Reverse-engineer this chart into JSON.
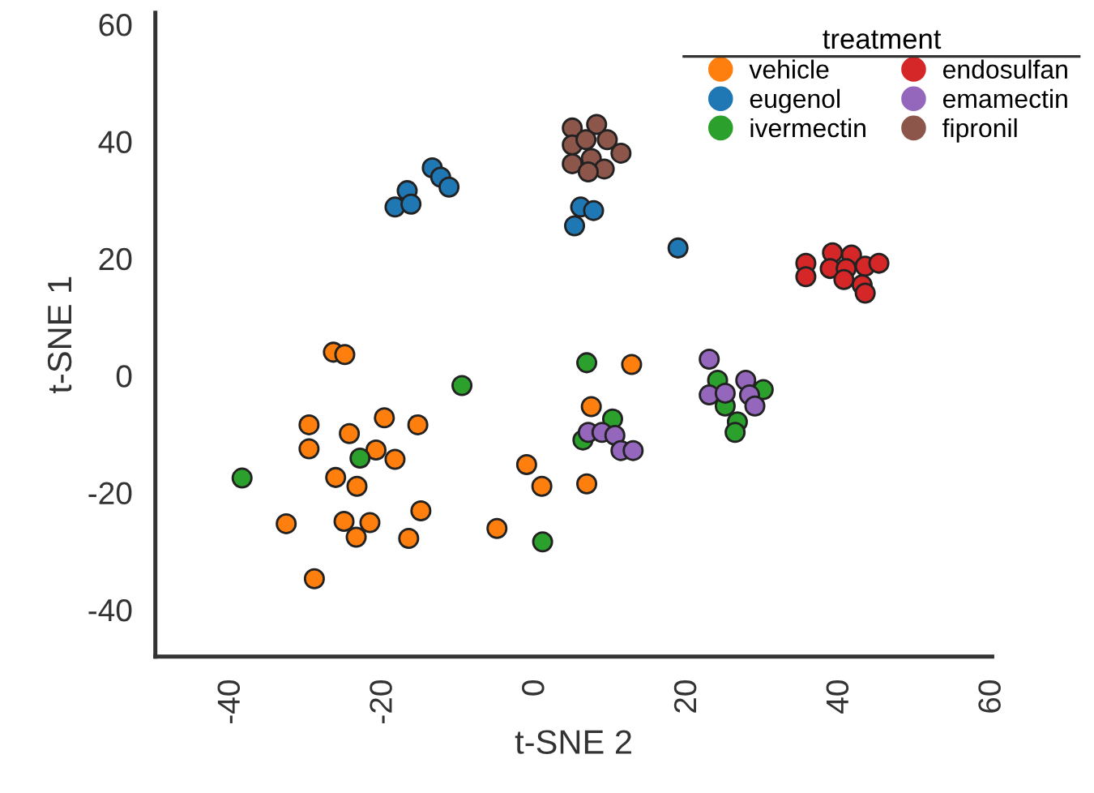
{
  "chart_data": {
    "type": "scatter",
    "xlabel": "t-SNE 2",
    "ylabel": "t-SNE 1",
    "legend_title": "treatment",
    "legend": "top right",
    "marker": "circle",
    "grid": false,
    "xlim": [
      -50,
      60
    ],
    "xticks": [
      -40,
      -20,
      0,
      20,
      40,
      60
    ],
    "ylim": [
      -48,
      62
    ],
    "yticks": [
      -40,
      -20,
      0,
      20,
      40,
      60
    ],
    "series": [
      {
        "name": "vehicle",
        "color": "#ff7f0e",
        "x": [
          -26.6,
          -25.1,
          -29.8,
          -24.5,
          -19.9,
          -15.5,
          -29.8,
          -21.0,
          -18.5,
          -26.3,
          -23.5,
          -32.8,
          -25.2,
          -21.8,
          -23.6,
          -15.1,
          -16.7,
          -29.1,
          -1.2,
          0.8,
          -5.1,
          6.7,
          7.3,
          12.6
        ],
        "values": [
          4.0,
          3.6,
          -8.4,
          -9.9,
          -7.2,
          -8.4,
          -12.5,
          -12.7,
          -14.3,
          -17.4,
          -18.9,
          -25.3,
          -24.9,
          -25.1,
          -27.6,
          -23.1,
          -27.8,
          -34.7,
          -15.2,
          -18.9,
          -26.1,
          -18.5,
          -5.3,
          1.9
        ]
      },
      {
        "name": "eugenol",
        "color": "#1f77b4",
        "x": [
          -18.5,
          -16.9,
          -16.4,
          -13.6,
          -12.5,
          -11.4,
          5.1,
          5.9,
          7.6,
          18.7
        ],
        "values": [
          28.8,
          31.6,
          29.3,
          35.5,
          33.9,
          32.2,
          25.6,
          28.8,
          28.2,
          21.8
        ]
      },
      {
        "name": "ivermectin",
        "color": "#2ca02c",
        "x": [
          -38.6,
          -23.1,
          -9.7,
          0.9,
          6.7,
          10.1,
          6.2,
          23.9,
          29.9,
          24.9,
          26.5,
          26.2
        ],
        "values": [
          -17.5,
          -14.1,
          -1.7,
          -28.4,
          2.2,
          -7.4,
          -11.0,
          -0.8,
          -2.4,
          -5.2,
          -7.9,
          -9.7
        ]
      },
      {
        "name": "endosulfan",
        "color": "#d62728",
        "x": [
          35.5,
          35.5,
          39.0,
          41.5,
          38.7,
          40.8,
          43.3,
          45.1,
          40.5,
          42.9,
          43.3
        ],
        "values": [
          19.2,
          16.9,
          21.0,
          20.6,
          18.3,
          18.3,
          18.7,
          19.2,
          16.4,
          15.5,
          14.1
        ]
      },
      {
        "name": "emamectin",
        "color": "#9467bd",
        "x": [
          6.9,
          8.7,
          10.4,
          11.2,
          12.8,
          22.8,
          22.8,
          24.9,
          27.6,
          28.1,
          28.8
        ],
        "values": [
          -9.7,
          -9.7,
          -10.2,
          -12.8,
          -12.8,
          2.8,
          -3.3,
          -3.0,
          -0.8,
          -3.3,
          -5.2
        ]
      },
      {
        "name": "fipronil",
        "color": "#8c564b",
        "x": [
          4.8,
          8.0,
          9.4,
          11.2,
          4.8,
          7.3,
          4.8,
          9.0,
          6.6,
          6.9
        ],
        "values": [
          42.3,
          42.9,
          40.3,
          38.0,
          39.4,
          37.1,
          36.2,
          35.3,
          40.3,
          34.8
        ]
      }
    ]
  }
}
